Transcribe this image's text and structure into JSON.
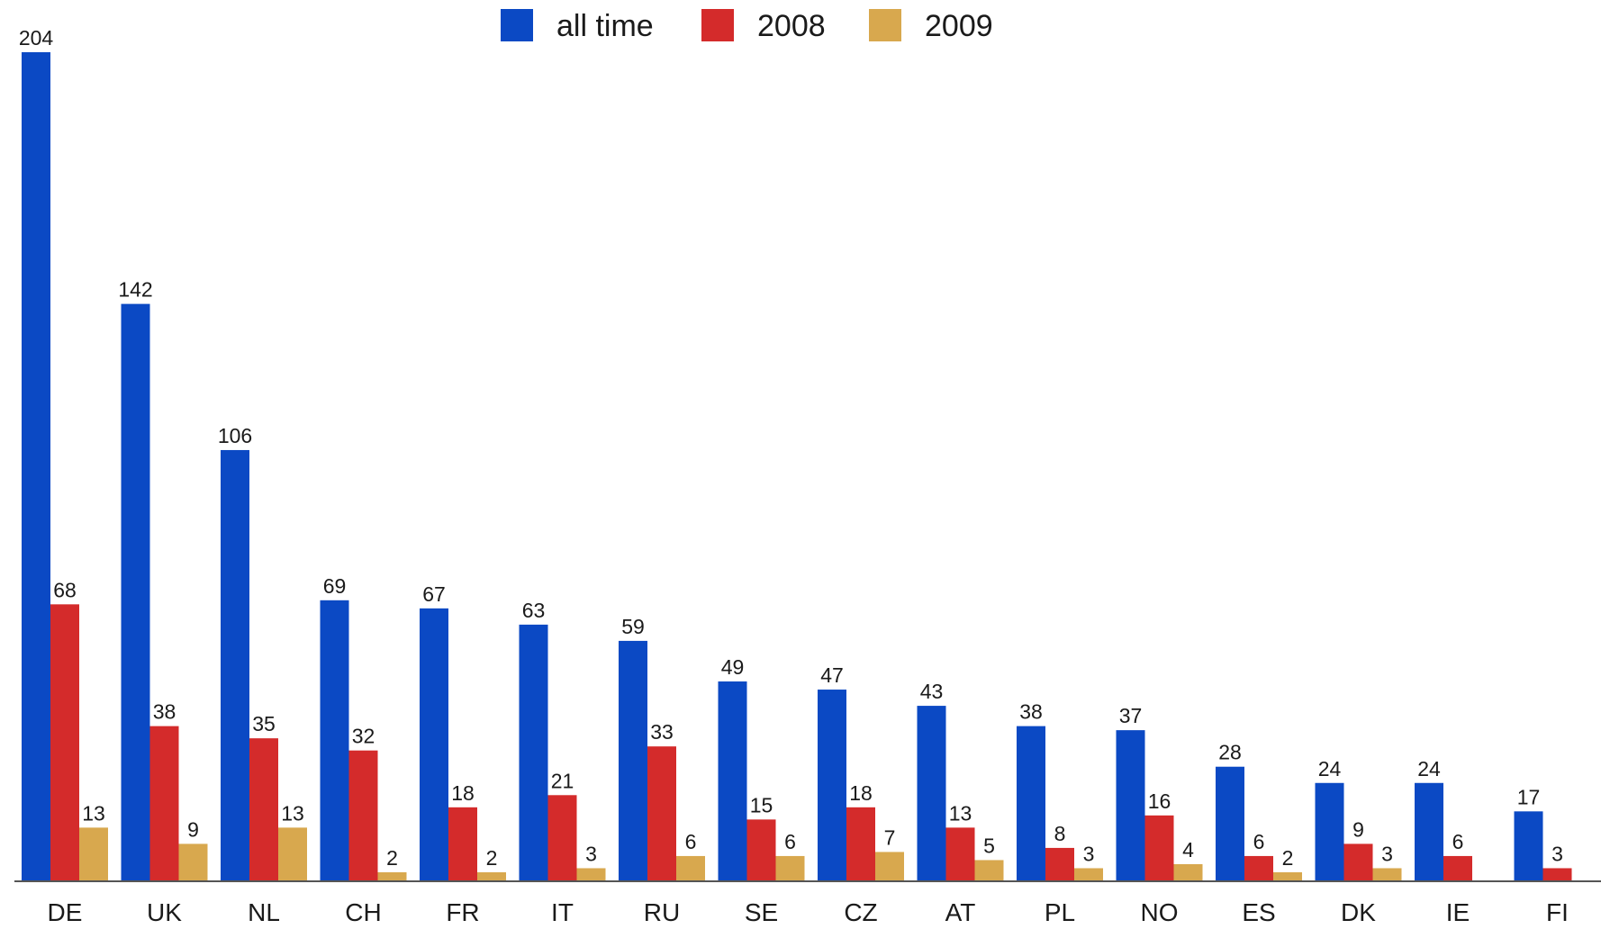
{
  "chart_data": {
    "type": "bar",
    "title": "",
    "xlabel": "",
    "ylabel": "",
    "ylim": [
      0,
      204
    ],
    "grid": false,
    "legend_position": "top-center",
    "categories": [
      "DE",
      "UK",
      "NL",
      "CH",
      "FR",
      "IT",
      "RU",
      "SE",
      "CZ",
      "AT",
      "PL",
      "NO",
      "ES",
      "DK",
      "IE",
      "FI"
    ],
    "series": [
      {
        "name": "all time",
        "color": "#0b49c4",
        "values": [
          204,
          142,
          106,
          69,
          67,
          63,
          59,
          49,
          47,
          43,
          38,
          37,
          28,
          24,
          24,
          17
        ]
      },
      {
        "name": "2008",
        "color": "#d42b2b",
        "values": [
          68,
          38,
          35,
          32,
          18,
          21,
          33,
          15,
          18,
          13,
          8,
          16,
          6,
          9,
          6,
          3
        ]
      },
      {
        "name": "2009",
        "color": "#d8a84e",
        "values": [
          13,
          9,
          13,
          2,
          2,
          3,
          6,
          6,
          7,
          5,
          3,
          4,
          2,
          3,
          null,
          null
        ]
      }
    ]
  }
}
